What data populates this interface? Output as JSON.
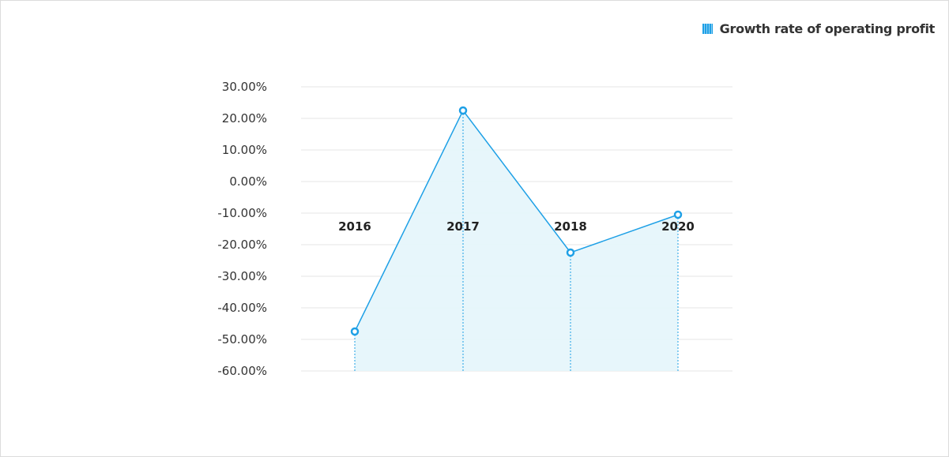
{
  "chart_data": {
    "type": "area",
    "legend": {
      "label": "Growth rate of operating profit",
      "placement": "top-right"
    },
    "categories": [
      "2016",
      "2017",
      "2018",
      "2020"
    ],
    "series": [
      {
        "name": "Growth rate of operating profit",
        "values": [
          -47.5,
          22.5,
          -22.5,
          -10.5
        ]
      }
    ],
    "y_ticks": [
      30,
      20,
      10,
      0,
      -10,
      -20,
      -30,
      -40,
      -50,
      -60
    ],
    "y_tick_labels": [
      "30.00%",
      "20.00%",
      "10.00%",
      "0.00%",
      "-10.00%",
      "-20.00%",
      "-30.00%",
      "-40.00%",
      "-50.00%",
      "-60.00%"
    ],
    "ylim": [
      -60,
      30
    ],
    "grid": true,
    "colors": {
      "line": "#1ea0e6",
      "fill": "#e6f5fb",
      "grid": "#e6e6e6"
    }
  }
}
